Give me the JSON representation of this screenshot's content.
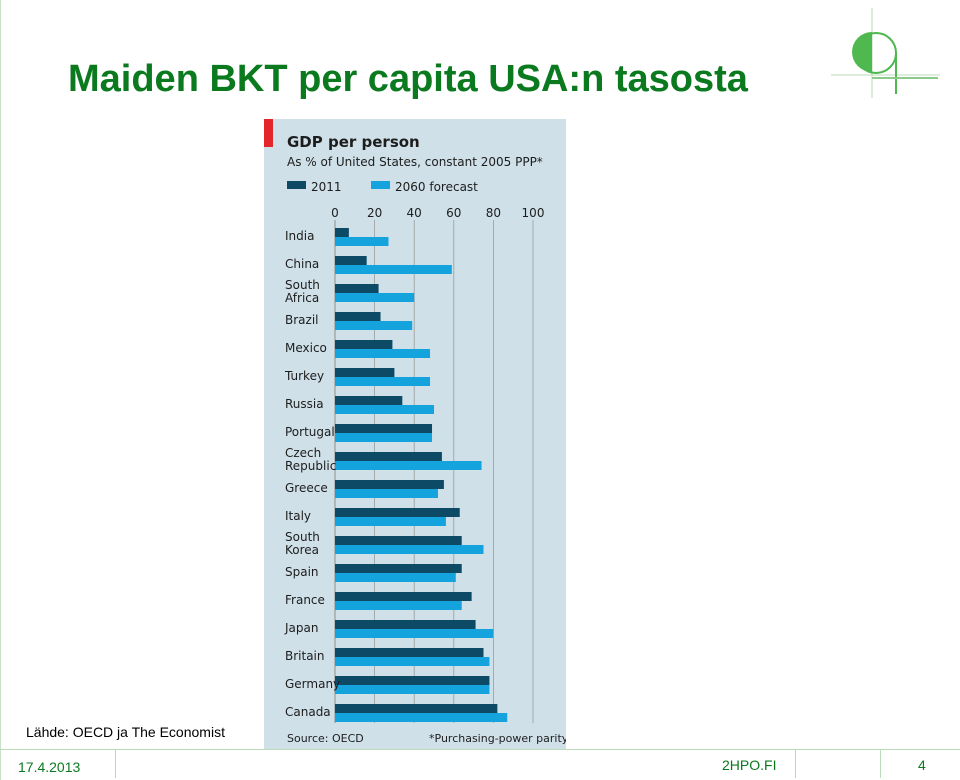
{
  "slide": {
    "title": "Maiden BKT per capita USA:n tasosta",
    "source": "Lähde: OECD ja The Economist",
    "footer": {
      "date": "17.4.2013",
      "site": "2HPO.FI",
      "page": "4"
    }
  },
  "colors": {
    "title": "#0b7a1f",
    "panel_bg": "#cfe0e9",
    "accent_red": "#e3262b",
    "series_2011": "#0c4a66",
    "series_2060": "#14a3dd",
    "grid": "#9c9c9c"
  },
  "chart_data": {
    "type": "bar",
    "orientation": "horizontal",
    "title": "GDP per person",
    "subtitle": "As % of United States, constant 2005 PPP*",
    "source_note": "Source: OECD",
    "footnote": "*Purchasing-power parity",
    "xlim": [
      0,
      100
    ],
    "xticks": [
      "0",
      "20",
      "40",
      "60",
      "80",
      "100"
    ],
    "grid": true,
    "legend_position": "top",
    "categories": [
      [
        "India"
      ],
      [
        "China"
      ],
      [
        "South",
        "Africa"
      ],
      [
        "Brazil"
      ],
      [
        "Mexico"
      ],
      [
        "Turkey"
      ],
      [
        "Russia"
      ],
      [
        "Portugal"
      ],
      [
        "Czech",
        "Republic"
      ],
      [
        "Greece"
      ],
      [
        "Italy"
      ],
      [
        "South",
        "Korea"
      ],
      [
        "Spain"
      ],
      [
        "France"
      ],
      [
        "Japan"
      ],
      [
        "Britain"
      ],
      [
        "Germany"
      ],
      [
        "Canada"
      ]
    ],
    "series": [
      {
        "name": "2011",
        "values": [
          7,
          16,
          22,
          23,
          29,
          30,
          34,
          49,
          54,
          55,
          63,
          64,
          64,
          69,
          71,
          75,
          78,
          82
        ]
      },
      {
        "name": "2060 forecast",
        "values": [
          27,
          59,
          40,
          39,
          48,
          48,
          50,
          49,
          74,
          52,
          56,
          75,
          61,
          64,
          80,
          78,
          78,
          87
        ]
      }
    ]
  }
}
